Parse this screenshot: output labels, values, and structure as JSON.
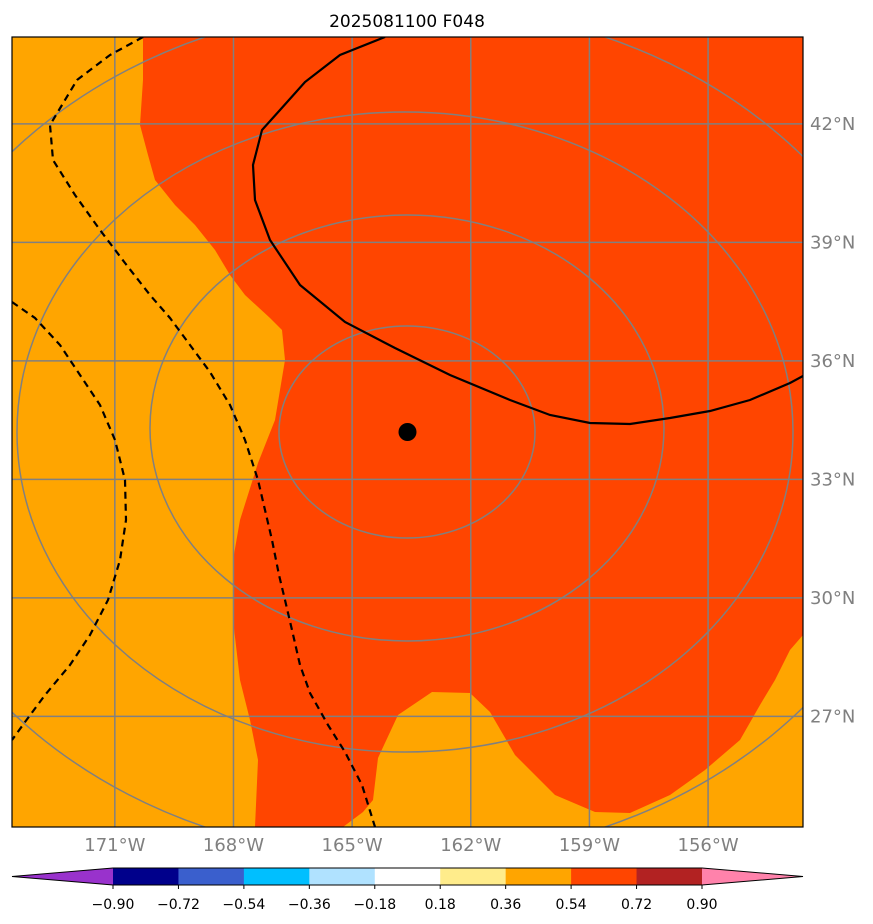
{
  "title": "2025081100 F048",
  "colors": {
    "field_low": "#ffa500",
    "field_high": "#ff4500",
    "graticule": "#808080",
    "contour": "#000000",
    "circles": "#808080",
    "center_marker": "#000000"
  },
  "axes": {
    "lon_labels": [
      "171°W",
      "168°W",
      "165°W",
      "162°W",
      "159°W",
      "156°W"
    ],
    "lat_labels": [
      "42°N",
      "39°N",
      "36°N",
      "33°N",
      "30°N",
      "27°N"
    ],
    "lon_values": [
      -171,
      -168,
      -165,
      -162,
      -159,
      -156
    ],
    "lat_values": [
      42,
      39,
      36,
      33,
      30,
      27
    ],
    "lon_range": [
      -173.6,
      -153.6
    ],
    "lat_range": [
      24.2,
      44.2
    ],
    "grid": true
  },
  "center": {
    "lon": -163.6,
    "lat": 34.2
  },
  "colorbar": {
    "extend": "both",
    "colors": [
      "#9932cc",
      "#00008b",
      "#3a5fcd",
      "#00bfff",
      "#b0e2ff",
      "#ffffff",
      "#ffec8b",
      "#ffa500",
      "#ff4500",
      "#b22222",
      "#ff82ab"
    ],
    "tick_labels": [
      "−0.90",
      "−0.72",
      "−0.54",
      "−0.36",
      "−0.18",
      "0.18",
      "0.36",
      "0.54",
      "0.72",
      "0.90"
    ]
  }
}
